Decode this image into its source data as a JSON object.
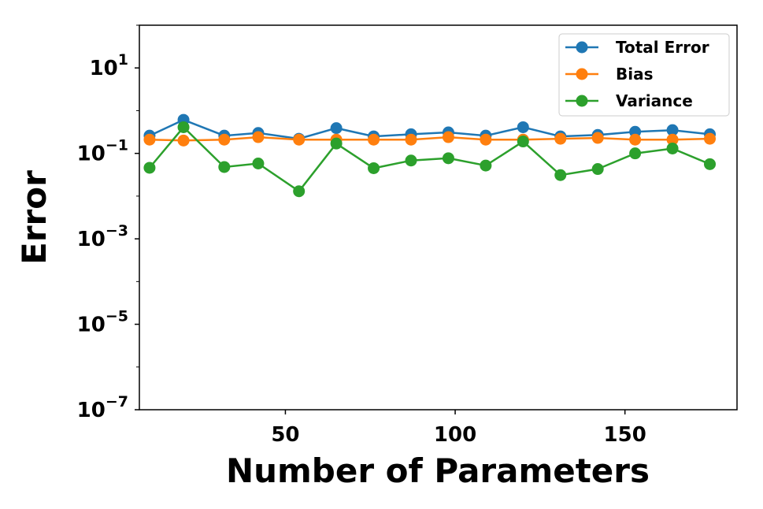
{
  "chart_data": {
    "type": "line",
    "xlabel": "Number of Parameters",
    "ylabel": "Error",
    "yscale": "log",
    "xlim": [
      7,
      183
    ],
    "ylim": [
      1e-07,
      100
    ],
    "x_ticks": [
      50,
      100,
      150
    ],
    "x_tick_labels": [
      "50",
      "100",
      "150"
    ],
    "y_ticks": [
      {
        "value": 10,
        "base": "10",
        "exp": "1"
      },
      {
        "value": 0.1,
        "base": "10",
        "exp": "−1"
      },
      {
        "value": 0.001,
        "base": "10",
        "exp": "−3"
      },
      {
        "value": 1e-05,
        "base": "10",
        "exp": "−5"
      },
      {
        "value": 1e-07,
        "base": "10",
        "exp": "−7"
      }
    ],
    "legend_position": "top-right",
    "x": [
      10,
      20,
      32,
      42,
      54,
      65,
      76,
      87,
      98,
      109,
      120,
      131,
      142,
      153,
      164,
      175
    ],
    "series": [
      {
        "name": "Total Error",
        "color": "#1f77b4",
        "values": [
          0.26,
          0.61,
          0.26,
          0.3,
          0.22,
          0.39,
          0.25,
          0.28,
          0.31,
          0.26,
          0.41,
          0.25,
          0.27,
          0.32,
          0.35,
          0.28
        ]
      },
      {
        "name": "Bias",
        "color": "#ff7f0e",
        "values": [
          0.21,
          0.2,
          0.21,
          0.24,
          0.21,
          0.21,
          0.21,
          0.21,
          0.24,
          0.21,
          0.21,
          0.22,
          0.23,
          0.21,
          0.21,
          0.22
        ]
      },
      {
        "name": "Variance",
        "color": "#2ca02c",
        "values": [
          0.046,
          0.41,
          0.048,
          0.058,
          0.013,
          0.17,
          0.045,
          0.068,
          0.077,
          0.052,
          0.19,
          0.031,
          0.043,
          0.1,
          0.13,
          0.056
        ]
      }
    ]
  }
}
